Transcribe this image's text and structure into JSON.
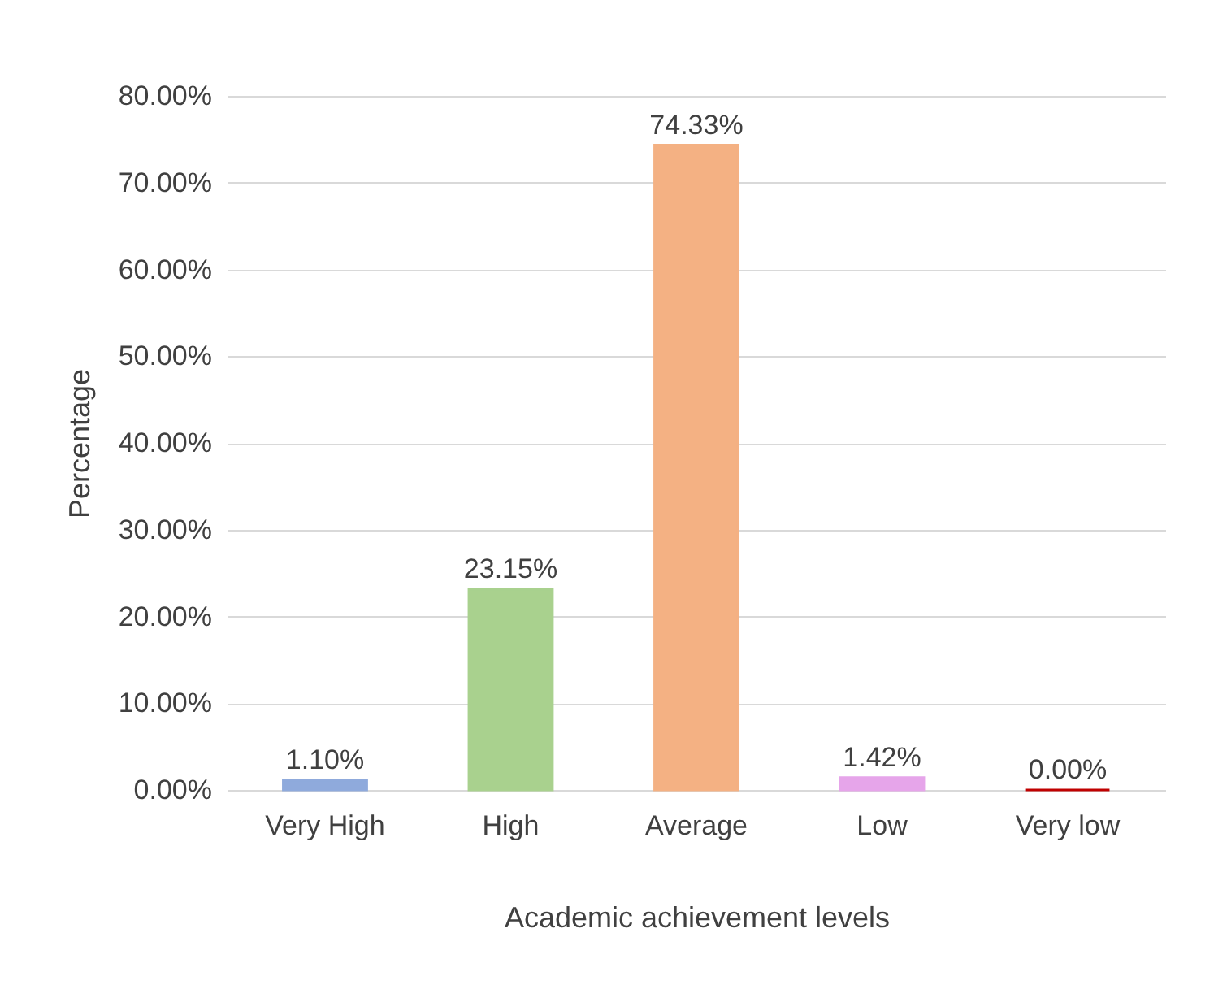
{
  "chart_data": {
    "type": "bar",
    "xlabel": "Academic achievement levels",
    "ylabel": "Percentage",
    "categories": [
      "Very High",
      "High",
      "Average",
      "Low",
      "Very low"
    ],
    "values": [
      1.1,
      23.15,
      74.33,
      1.42,
      0.0
    ],
    "colors": [
      "#8faadc",
      "#a9d18e",
      "#f4b183",
      "#e6a5ea",
      "#c00000"
    ],
    "value_labels": [
      "1.10%",
      "23.15%",
      "74.33%",
      "1.42%",
      "0.00%"
    ],
    "ylim": [
      0,
      80
    ],
    "yticks": [
      {
        "value": 0,
        "label": "0.00%"
      },
      {
        "value": 10,
        "label": "10.00%"
      },
      {
        "value": 20,
        "label": "20.00%"
      },
      {
        "value": 30,
        "label": "30.00%"
      },
      {
        "value": 40,
        "label": "40.00%"
      },
      {
        "value": 50,
        "label": "50.00%"
      },
      {
        "value": 60,
        "label": "60.00%"
      },
      {
        "value": 70,
        "label": "70.00%"
      },
      {
        "value": 80,
        "label": "80.00%"
      }
    ],
    "grid": "y"
  }
}
